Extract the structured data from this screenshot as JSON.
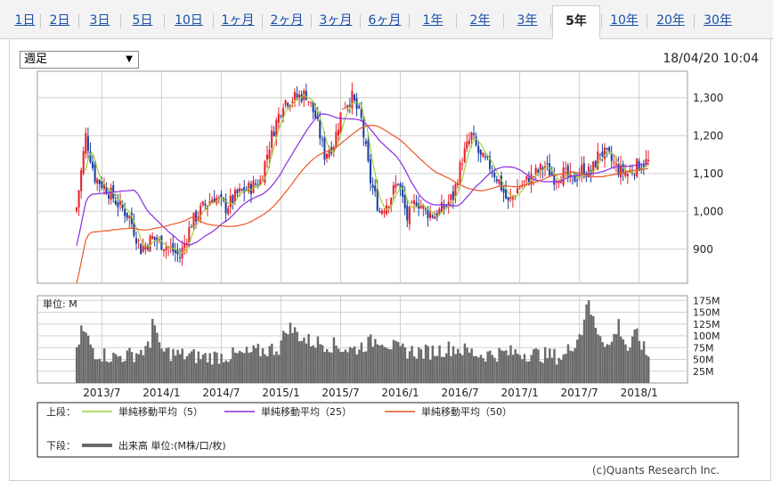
{
  "tabs": [
    {
      "label": "1日",
      "active": false
    },
    {
      "label": "2日",
      "active": false
    },
    {
      "label": "3日",
      "active": false
    },
    {
      "label": "5日",
      "active": false
    },
    {
      "label": "10日",
      "active": false
    },
    {
      "label": "1ヶ月",
      "active": false
    },
    {
      "label": "2ヶ月",
      "active": false
    },
    {
      "label": "3ヶ月",
      "active": false
    },
    {
      "label": "6ヶ月",
      "active": false
    },
    {
      "label": "1年",
      "active": false
    },
    {
      "label": "2年",
      "active": false
    },
    {
      "label": "3年",
      "active": false
    },
    {
      "label": "5年",
      "active": true
    },
    {
      "label": "10年",
      "active": false
    },
    {
      "label": "20年",
      "active": false
    },
    {
      "label": "30年",
      "active": false
    }
  ],
  "period_select": {
    "value": "週足"
  },
  "timestamp": "18/04/20 10:04",
  "copyright": "(c)Quants Research Inc.",
  "colors": {
    "up": "#e8202a",
    "down": "#1c3fa0",
    "sma5": "#9fcf3a",
    "sma25": "#8a2be2",
    "sma50": "#ee5522",
    "volume": "#6a6a6a",
    "grid": "#d0d0d0"
  },
  "legend": {
    "upper_label": "上段：",
    "lower_label": "下段：",
    "sma5": "単純移動平均（5）",
    "sma25": "単純移動平均（25）",
    "sma50": "単純移動平均（50）",
    "volume": "出来高 単位:(M株/口/枚)"
  },
  "chart_data": {
    "type": "candlestick",
    "interval": "weekly",
    "x_tick_labels": [
      "2013/7",
      "2014/1",
      "2014/7",
      "2015/1",
      "2015/7",
      "2016/1",
      "2016/7",
      "2017/1",
      "2017/7",
      "2018/1"
    ],
    "price_axis": {
      "ticks": [
        "1,300",
        "1,200",
        "1,100",
        "1,000",
        "900"
      ],
      "tick_values": [
        1300,
        1200,
        1100,
        1000,
        900
      ],
      "range": [
        810,
        1370
      ]
    },
    "volume_axis": {
      "unit_label": "単位: M",
      "ticks": [
        "175M",
        "150M",
        "125M",
        "100M",
        "75M",
        "50M",
        "25M"
      ],
      "tick_values": [
        175,
        150,
        125,
        100,
        75,
        50,
        25
      ],
      "range": [
        0,
        185
      ]
    },
    "date_range": [
      "2013-04",
      "2018-04"
    ],
    "close_anchors": [
      {
        "t": 0,
        "v": 1010
      },
      {
        "t": 4,
        "v": 1200
      },
      {
        "t": 8,
        "v": 1090
      },
      {
        "t": 13,
        "v": 1060
      },
      {
        "t": 18,
        "v": 1020
      },
      {
        "t": 23,
        "v": 985
      },
      {
        "t": 28,
        "v": 900
      },
      {
        "t": 33,
        "v": 930
      },
      {
        "t": 40,
        "v": 905
      },
      {
        "t": 45,
        "v": 880
      },
      {
        "t": 50,
        "v": 970
      },
      {
        "t": 55,
        "v": 1010
      },
      {
        "t": 60,
        "v": 1040
      },
      {
        "t": 65,
        "v": 1010
      },
      {
        "t": 70,
        "v": 1045
      },
      {
        "t": 75,
        "v": 1060
      },
      {
        "t": 80,
        "v": 1080
      },
      {
        "t": 85,
        "v": 1200
      },
      {
        "t": 90,
        "v": 1290
      },
      {
        "t": 95,
        "v": 1300
      },
      {
        "t": 100,
        "v": 1310
      },
      {
        "t": 104,
        "v": 1250
      },
      {
        "t": 108,
        "v": 1150
      },
      {
        "t": 112,
        "v": 1180
      },
      {
        "t": 116,
        "v": 1280
      },
      {
        "t": 120,
        "v": 1300
      },
      {
        "t": 124,
        "v": 1240
      },
      {
        "t": 128,
        "v": 1080
      },
      {
        "t": 132,
        "v": 1000
      },
      {
        "t": 136,
        "v": 1030
      },
      {
        "t": 140,
        "v": 1080
      },
      {
        "t": 144,
        "v": 980
      },
      {
        "t": 148,
        "v": 1030
      },
      {
        "t": 152,
        "v": 1000
      },
      {
        "t": 156,
        "v": 990
      },
      {
        "t": 160,
        "v": 1010
      },
      {
        "t": 164,
        "v": 1040
      },
      {
        "t": 168,
        "v": 1140
      },
      {
        "t": 172,
        "v": 1200
      },
      {
        "t": 176,
        "v": 1140
      },
      {
        "t": 180,
        "v": 1120
      },
      {
        "t": 184,
        "v": 1080
      },
      {
        "t": 188,
        "v": 1020
      },
      {
        "t": 192,
        "v": 1060
      },
      {
        "t": 196,
        "v": 1080
      },
      {
        "t": 200,
        "v": 1100
      },
      {
        "t": 204,
        "v": 1120
      },
      {
        "t": 208,
        "v": 1090
      },
      {
        "t": 212,
        "v": 1100
      },
      {
        "t": 216,
        "v": 1080
      },
      {
        "t": 220,
        "v": 1110
      },
      {
        "t": 224,
        "v": 1100
      },
      {
        "t": 228,
        "v": 1160
      },
      {
        "t": 232,
        "v": 1140
      },
      {
        "t": 236,
        "v": 1110
      },
      {
        "t": 240,
        "v": 1100
      },
      {
        "t": 244,
        "v": 1120
      },
      {
        "t": 248,
        "v": 1130
      }
    ],
    "volume_anchors": [
      {
        "t": 0,
        "v": 60
      },
      {
        "t": 2,
        "v": 115
      },
      {
        "t": 4,
        "v": 100
      },
      {
        "t": 8,
        "v": 65
      },
      {
        "t": 16,
        "v": 55
      },
      {
        "t": 24,
        "v": 60
      },
      {
        "t": 32,
        "v": 75
      },
      {
        "t": 33,
        "v": 150
      },
      {
        "t": 36,
        "v": 70
      },
      {
        "t": 44,
        "v": 60
      },
      {
        "t": 56,
        "v": 55
      },
      {
        "t": 72,
        "v": 60
      },
      {
        "t": 88,
        "v": 75
      },
      {
        "t": 92,
        "v": 120
      },
      {
        "t": 100,
        "v": 90
      },
      {
        "t": 112,
        "v": 80
      },
      {
        "t": 120,
        "v": 70
      },
      {
        "t": 132,
        "v": 95
      },
      {
        "t": 140,
        "v": 70
      },
      {
        "t": 152,
        "v": 65
      },
      {
        "t": 164,
        "v": 75
      },
      {
        "t": 176,
        "v": 60
      },
      {
        "t": 192,
        "v": 65
      },
      {
        "t": 212,
        "v": 55
      },
      {
        "t": 220,
        "v": 110
      },
      {
        "t": 222,
        "v": 175
      },
      {
        "t": 226,
        "v": 120
      },
      {
        "t": 232,
        "v": 75
      },
      {
        "t": 236,
        "v": 125
      },
      {
        "t": 240,
        "v": 70
      },
      {
        "t": 244,
        "v": 105
      },
      {
        "t": 248,
        "v": 60
      }
    ]
  }
}
